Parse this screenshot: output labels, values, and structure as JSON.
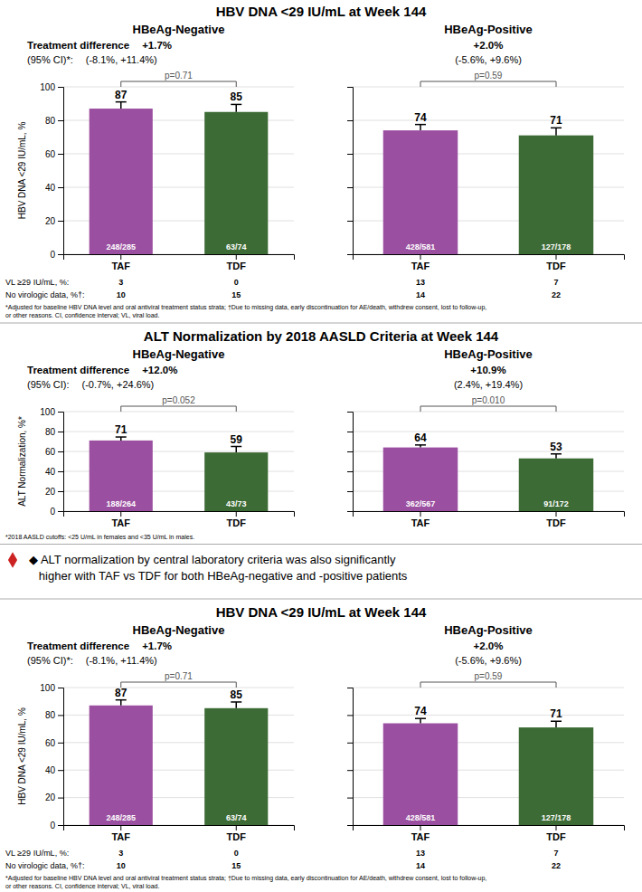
{
  "chart_data": [
    {
      "type": "bar",
      "title": "HBV DNA <29 IU/mL at Week 144",
      "subtitle": "HBeAg-Negative",
      "y_label": "HBV DNA <29 IU/mL, %",
      "categories": [
        "TAF",
        "TDF"
      ],
      "values": [
        87,
        85
      ],
      "errors": [
        4.0,
        4.5
      ],
      "colors": [
        "#9b4fa0",
        "#3d6b35"
      ],
      "ylim": [
        0,
        100
      ],
      "yticks": [
        0,
        20,
        40,
        60,
        80,
        100
      ],
      "grid": true,
      "data_labels": true,
      "annotations": {
        "treatment_difference_label": "Treatment difference",
        "treatment_difference": "+1.7%",
        "ci_label": "(95% CI)*:",
        "ci": "(-8.1%, +11.4%)",
        "p_value": "p=0.71",
        "n": [
          "248/285",
          "63/74"
        ],
        "vl_label": "VL ≥29 IU/mL, %:",
        "vl": [
          "3",
          "0"
        ],
        "no_virologic_data_label": "No virologic data, %†:",
        "no_virologic_data": [
          "10",
          "15"
        ],
        "footnote": "*Adjusted for baseline HBV DNA level and oral antiviral treatment status strata; †Due to missing data, early discontinuation for AE/death, withdrew consent, lost to follow-up,\nor other reasons. CI, confidence interval; VL, viral load."
      }
    },
    {
      "type": "bar",
      "subtitle": "HBeAg-Positive",
      "categories": [
        "TAF",
        "TDF"
      ],
      "values": [
        74,
        71
      ],
      "errors": [
        3.5,
        4.5
      ],
      "colors": [
        "#9b4fa0",
        "#3d6b35"
      ],
      "ylim": [
        0,
        100
      ],
      "yticks": [
        0,
        20,
        40,
        60,
        80,
        100
      ],
      "grid": true,
      "data_labels": true,
      "tick_labels": "x",
      "annotations": {
        "treatment_difference": "+2.0%",
        "ci": "(-5.6%, +9.6%)",
        "p_value": "p=0.59",
        "n": [
          "428/581",
          "127/178"
        ],
        "vl": [
          "13",
          "7"
        ],
        "no_virologic_data": [
          "14",
          "22"
        ]
      }
    },
    {
      "type": "bar",
      "title": "ALT Normalization by 2018 AASLD Criteria at Week 144",
      "subtitle": "HBeAg-Negative",
      "y_label": "ALT Normalization, %*",
      "categories": [
        "TAF",
        "TDF"
      ],
      "values": [
        71,
        59
      ],
      "errors": [
        3.5,
        6.0
      ],
      "colors": [
        "#9b4fa0",
        "#3d6b35"
      ],
      "ylim": [
        0,
        100
      ],
      "yticks": [
        0,
        20,
        40,
        60,
        80,
        100
      ],
      "grid": true,
      "data_labels": true,
      "annotations": {
        "treatment_difference_label": "Treatment difference",
        "treatment_difference": "+12.0%",
        "ci_label": "(95% CI):",
        "ci": "(-0.7%, +24.6%)",
        "p_value": "p=0.052",
        "n": [
          "188/264",
          "43/73"
        ],
        "footnote": "*2018 AASLD cutoffs: <25 U/mL in females and <35 U/mL in males.",
        "bullet": {
          "text": [
            "◆ ALT normalization by central laboratory criteria was also significantly",
            "   higher with TAF vs TDF for both HBeAg-negative and -positive patients"
          ],
          "color": "#cc2222"
        }
      }
    },
    {
      "type": "bar",
      "subtitle": "HBeAg-Positive",
      "categories": [
        "TAF",
        "TDF"
      ],
      "values": [
        64,
        53
      ],
      "errors": [
        2.5,
        4.5
      ],
      "colors": [
        "#9b4fa0",
        "#3d6b35"
      ],
      "ylim": [
        0,
        100
      ],
      "yticks": [
        0,
        20,
        40,
        60,
        80,
        100
      ],
      "grid": true,
      "data_labels": true,
      "tick_labels": "x",
      "annotations": {
        "treatment_difference": "+10.9%",
        "ci": "(2.4%, +19.4%)",
        "p_value": "p=0.010",
        "n": [
          "362/567",
          "91/172"
        ]
      }
    },
    {
      "type": "bar",
      "title": "HBV DNA <29 IU/mL at Week 144",
      "subtitle": "HBeAg-Negative",
      "y_label": "HBV DNA <29 IU/mL, %",
      "categories": [
        "TAF",
        "TDF"
      ],
      "values": [
        87,
        85
      ],
      "errors": [
        4.0,
        4.5
      ],
      "colors": [
        "#9b4fa0",
        "#3d6b35"
      ],
      "ylim": [
        0,
        100
      ],
      "yticks": [
        0,
        20,
        40,
        60,
        80,
        100
      ],
      "grid": true,
      "data_labels": true,
      "annotations": {
        "treatment_difference_label": "Treatment difference",
        "treatment_difference": "+1.7%",
        "ci_label": "(95% CI)*:",
        "ci": "(-8.1%, +11.4%)",
        "p_value": "p=0.71",
        "n": [
          "248/285",
          "63/74"
        ],
        "vl_label": "VL ≥29 IU/mL, %:",
        "vl": [
          "3",
          "0"
        ],
        "no_virologic_data_label": "No virologic data, %†:",
        "no_virologic_data": [
          "10",
          "15"
        ],
        "footnote": "*Adjusted for baseline HBV DNA level and oral antiviral treatment status strata; †Due to missing data, early discontinuation for AE/death, withdrew consent, lost to follow-up,\nor other reasons. CI, confidence interval; VL, viral load."
      }
    },
    {
      "type": "bar",
      "subtitle": "HBeAg-Positive",
      "categories": [
        "TAF",
        "TDF"
      ],
      "values": [
        74,
        71
      ],
      "errors": [
        3.5,
        4.5
      ],
      "colors": [
        "#9b4fa0",
        "#3d6b35"
      ],
      "ylim": [
        0,
        100
      ],
      "yticks": [
        0,
        20,
        40,
        60,
        80,
        100
      ],
      "grid": true,
      "data_labels": true,
      "tick_labels": "x",
      "annotations": {
        "treatment_difference": "+2.0%",
        "ci": "(-5.6%, +9.6%)",
        "p_value": "p=0.59",
        "n": [
          "428/581",
          "127/178"
        ],
        "vl": [
          "13",
          "7"
        ],
        "no_virologic_data": [
          "14",
          "22"
        ]
      }
    }
  ]
}
